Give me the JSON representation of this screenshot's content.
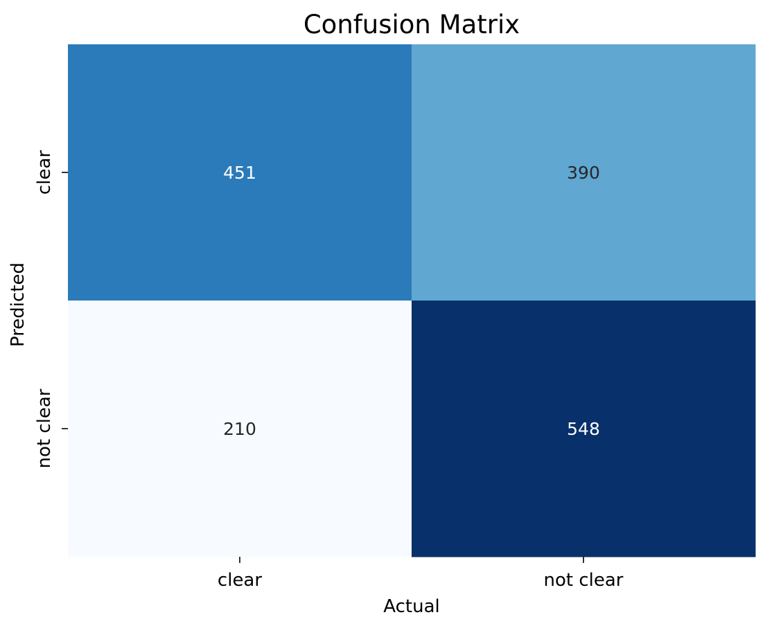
{
  "chart_data": {
    "type": "heatmap",
    "title": "Confusion Matrix",
    "xlabel": "Actual",
    "ylabel": "Predicted",
    "x_categories": [
      "clear",
      "not clear"
    ],
    "y_categories": [
      "clear",
      "not clear"
    ],
    "values": [
      [
        451,
        390
      ],
      [
        210,
        548
      ]
    ],
    "colormap": "Blues",
    "value_range": [
      210,
      548
    ],
    "colorbar": false,
    "grid": false,
    "annotations": true,
    "colors": {
      "low": "#f7fbff",
      "high": "#08306b",
      "text_light": "#ffffff",
      "text_dark": "#262626",
      "axis": "#000000"
    }
  }
}
